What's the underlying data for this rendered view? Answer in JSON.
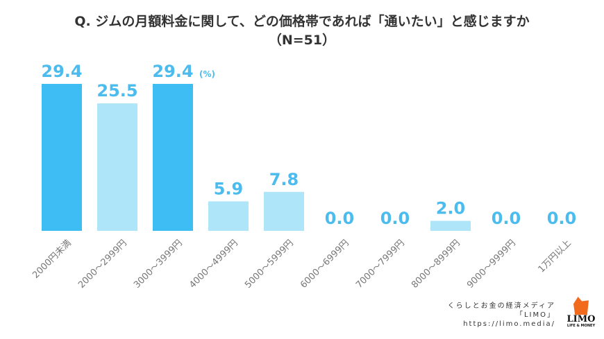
{
  "chart_data": {
    "type": "bar",
    "title": "Q. ジムの月額料金に関して、どの価格帯であれば「通いたい」と感じますか",
    "subtitle": "（N=51）",
    "unit_label": "(%)",
    "categories": [
      "2000円未満",
      "2000〜2999円",
      "3000〜3999円",
      "4000〜4999円",
      "5000〜5999円",
      "6000〜6999円",
      "7000〜7999円",
      "8000〜8999円",
      "9000〜9999円",
      "1万円以上"
    ],
    "values": [
      29.4,
      25.5,
      29.4,
      5.9,
      7.8,
      0.0,
      0.0,
      2.0,
      0.0,
      0.0
    ],
    "highlight": [
      true,
      false,
      true,
      false,
      false,
      false,
      false,
      false,
      false,
      false
    ],
    "ylim": [
      0,
      30
    ],
    "grid": false,
    "colors": {
      "highlight": "#3ebdf4",
      "normal": "#afe5f9",
      "label": "#4cbcee",
      "tick": "#777777"
    }
  },
  "credit": {
    "line1": "くらしとお金の経済メディア",
    "line2": "「LIMO」",
    "line3": "https://limo.media/"
  },
  "logo": {
    "text": "LIMO",
    "tagline": "LIFE & MONEY"
  }
}
